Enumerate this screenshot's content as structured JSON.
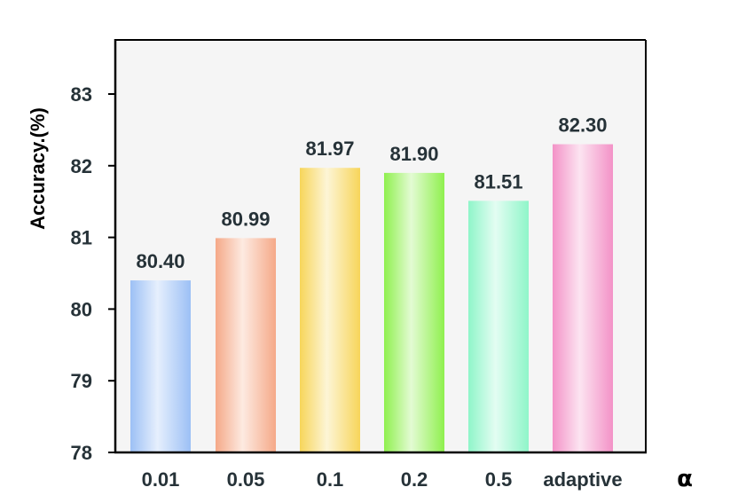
{
  "chart_data": {
    "type": "bar",
    "categories": [
      "0.01",
      "0.05",
      "0.1",
      "0.2",
      "0.5",
      "adaptive"
    ],
    "values": [
      80.4,
      80.99,
      81.97,
      81.9,
      81.51,
      82.3
    ],
    "value_labels": [
      "80.40",
      "80.99",
      "81.97",
      "81.90",
      "81.51",
      "82.30"
    ],
    "colors": [
      "#9cc0f5",
      "#f5a988",
      "#f7d55a",
      "#8ff04e",
      "#8ff5c9",
      "#f392c7"
    ],
    "ylabel": "Accuracy.(%)",
    "xlabel": "α",
    "ylim": [
      78,
      84
    ],
    "yticks": [
      "78",
      "79",
      "80",
      "81",
      "82",
      "83"
    ],
    "grid": false,
    "legend": "none",
    "plot_background": "#f5f5f5"
  }
}
